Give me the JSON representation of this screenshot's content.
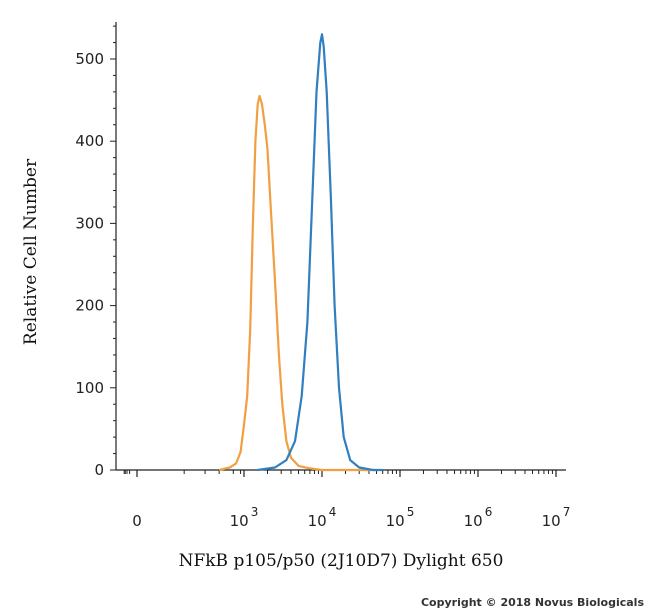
{
  "chart_data": {
    "type": "line",
    "title": "",
    "xlabel": "NFkB p105/p50 (2J10D7) Dylight 650",
    "ylabel": "Relative Cell Number",
    "x_scale": "biexponential",
    "x_tick_labels": [
      {
        "base": "0",
        "exp": ""
      },
      {
        "base": "10",
        "exp": "3"
      },
      {
        "base": "10",
        "exp": "4"
      },
      {
        "base": "10",
        "exp": "5"
      },
      {
        "base": "10",
        "exp": "6"
      },
      {
        "base": "10",
        "exp": "7"
      }
    ],
    "x_tick_values": [
      0,
      1000,
      10000,
      100000,
      1000000,
      10000000
    ],
    "y_ticks": [
      0,
      100,
      200,
      300,
      400,
      500
    ],
    "ylim": [
      0,
      545
    ],
    "grid": false,
    "legend": "none",
    "series": [
      {
        "color": "#f0a040",
        "points": [
          [
            200,
            0
          ],
          [
            400,
            3
          ],
          [
            600,
            8
          ],
          [
            800,
            22
          ],
          [
            1000,
            55
          ],
          [
            1100,
            90
          ],
          [
            1200,
            170
          ],
          [
            1300,
            300
          ],
          [
            1400,
            400
          ],
          [
            1500,
            445
          ],
          [
            1580,
            455
          ],
          [
            1700,
            445
          ],
          [
            1850,
            420
          ],
          [
            2000,
            390
          ],
          [
            2200,
            320
          ],
          [
            2500,
            230
          ],
          [
            2800,
            140
          ],
          [
            3100,
            80
          ],
          [
            3500,
            35
          ],
          [
            4000,
            15
          ],
          [
            5000,
            5
          ],
          [
            7000,
            2
          ],
          [
            10000,
            0
          ],
          [
            50000,
            0
          ]
        ]
      },
      {
        "color": "#2f7fc1",
        "points": [
          [
            1500,
            0
          ],
          [
            2500,
            3
          ],
          [
            3500,
            12
          ],
          [
            4500,
            35
          ],
          [
            5500,
            90
          ],
          [
            6500,
            180
          ],
          [
            7500,
            330
          ],
          [
            8500,
            460
          ],
          [
            9500,
            520
          ],
          [
            10000,
            530
          ],
          [
            10500,
            515
          ],
          [
            11500,
            460
          ],
          [
            13000,
            330
          ],
          [
            14500,
            200
          ],
          [
            16500,
            100
          ],
          [
            19000,
            40
          ],
          [
            23000,
            12
          ],
          [
            30000,
            3
          ],
          [
            45000,
            0
          ],
          [
            60000,
            0
          ]
        ]
      }
    ]
  },
  "copyright": "Copyright © 2018 Novus Biologicals"
}
